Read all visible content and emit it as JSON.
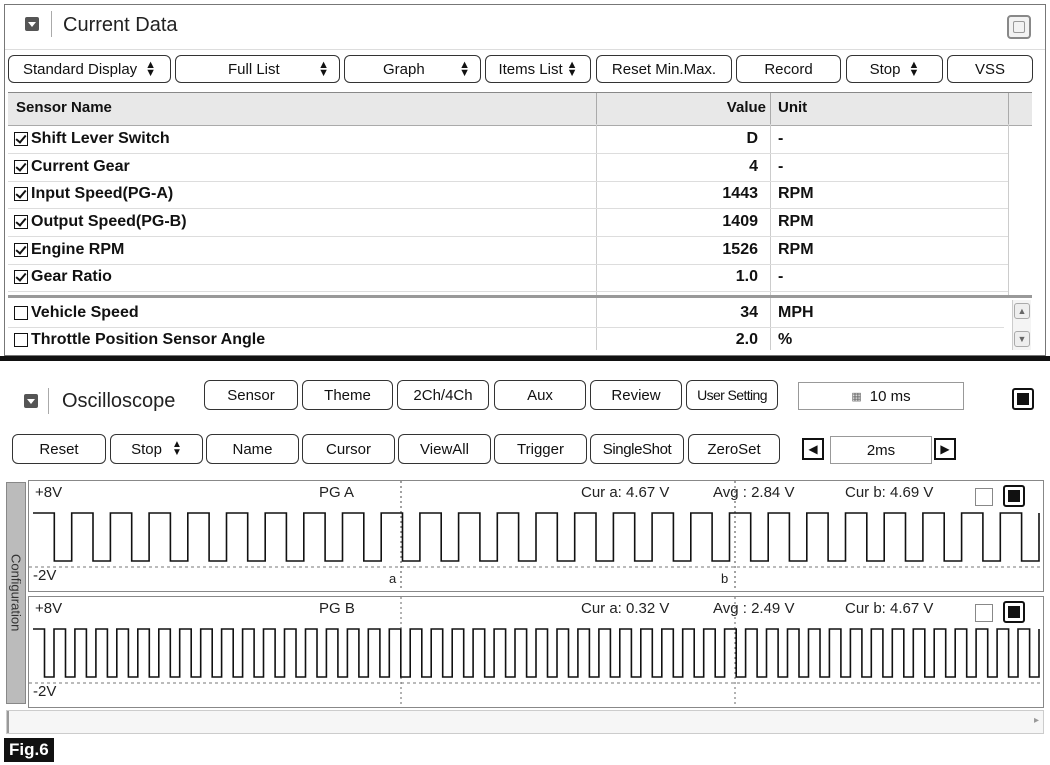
{
  "current_data": {
    "title": "Current Data",
    "toolbar": [
      {
        "label": "Standard Display",
        "dropdown": true
      },
      {
        "label": "Full List",
        "dropdown": true
      },
      {
        "label": "Graph",
        "dropdown": true
      },
      {
        "label": "Items List",
        "dropdown": true
      },
      {
        "label": "Reset Min.Max.",
        "dropdown": false
      },
      {
        "label": "Record",
        "dropdown": false
      },
      {
        "label": "Stop",
        "dropdown": true
      },
      {
        "label": "VSS",
        "dropdown": false
      }
    ],
    "columns": {
      "name": "Sensor Name",
      "value": "Value",
      "unit": "Unit"
    },
    "rows": [
      {
        "name": "Shift Lever Switch",
        "value": "D",
        "unit": "-",
        "checked": true
      },
      {
        "name": "Current Gear",
        "value": "4",
        "unit": "-",
        "checked": true
      },
      {
        "name": "Input Speed(PG-A)",
        "value": "1443",
        "unit": "RPM",
        "checked": true
      },
      {
        "name": "Output Speed(PG-B)",
        "value": "1409",
        "unit": "RPM",
        "checked": true
      },
      {
        "name": "Engine RPM",
        "value": "1526",
        "unit": "RPM",
        "checked": true
      },
      {
        "name": "Gear Ratio",
        "value": "1.0",
        "unit": "-",
        "checked": true
      },
      {
        "name": "Vehicle Speed",
        "value": "34",
        "unit": "MPH",
        "checked": false
      },
      {
        "name": "Throttle Position Sensor Angle",
        "value": "2.0",
        "unit": "%",
        "checked": false
      }
    ]
  },
  "oscilloscope": {
    "title": "Oscilloscope",
    "toolbar1": [
      "Sensor",
      "Theme",
      "2Ch/4Ch",
      "Aux",
      "Review",
      "User Setting"
    ],
    "sample_rate": "10 ms",
    "toolbar2": [
      {
        "label": "Reset",
        "dropdown": false
      },
      {
        "label": "Stop",
        "dropdown": true
      },
      {
        "label": "Name",
        "dropdown": false
      },
      {
        "label": "Cursor",
        "dropdown": false
      },
      {
        "label": "ViewAll",
        "dropdown": false
      },
      {
        "label": "Trigger",
        "dropdown": false
      },
      {
        "label": "SingleShot",
        "dropdown": false
      },
      {
        "label": "ZeroSet",
        "dropdown": false
      }
    ],
    "time_div": "2ms",
    "config_tab": "Configuration",
    "channels": [
      {
        "name": "PG A",
        "top_label": "+8V",
        "bottom_label": "-2V",
        "cur_a": "Cur a: 4.67 V",
        "avg": "Avg  : 2.84 V",
        "cur_b": "Cur b: 4.69 V",
        "cursor_a": "a",
        "cursor_b": "b",
        "pulses": 26
      },
      {
        "name": "PG B",
        "top_label": "+8V",
        "bottom_label": "-2V",
        "cur_a": "Cur a: 0.32 V",
        "avg": "Avg  : 2.49 V",
        "cur_b": "Cur b: 4.67 V",
        "pulses": 48
      }
    ]
  },
  "figure_label": "Fig.6"
}
